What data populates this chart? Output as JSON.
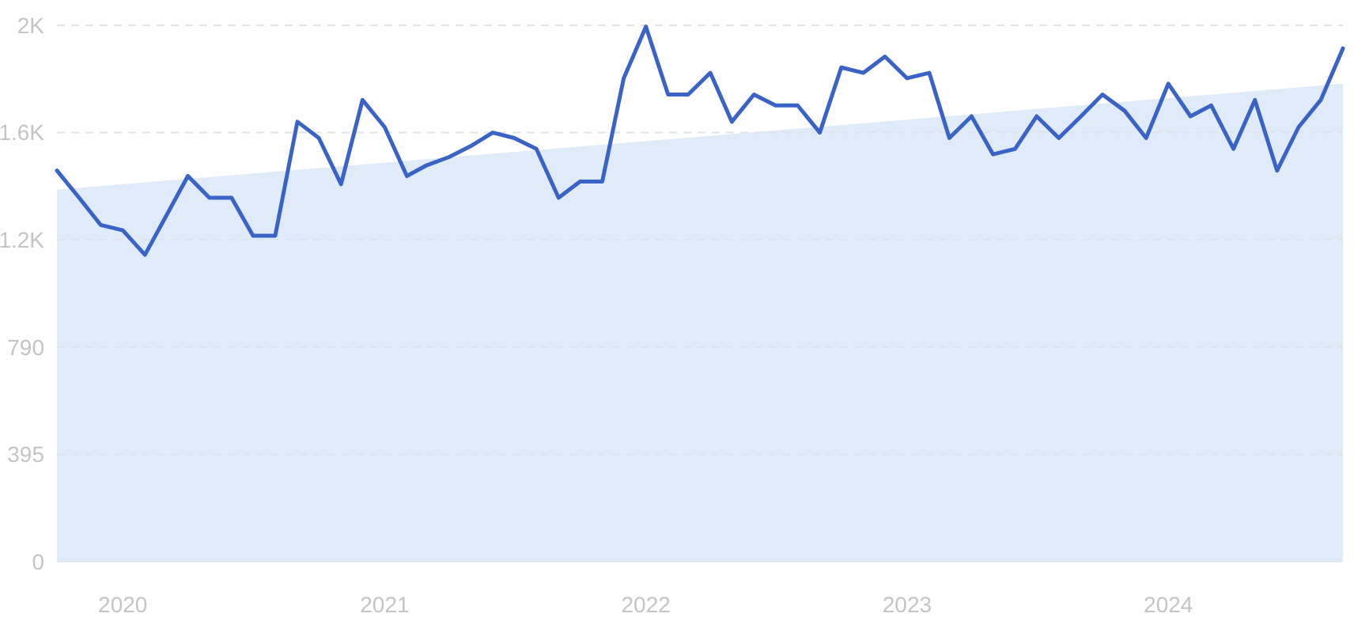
{
  "chart_data": {
    "type": "line",
    "xlim": [
      "2019-10",
      "2024-09"
    ],
    "xticks": [
      "2020",
      "2021",
      "2022",
      "2023",
      "2024"
    ],
    "ylim": [
      0,
      1975
    ],
    "yticks": [
      0,
      395,
      790,
      {
        "value": 1185,
        "label": "1.2K"
      },
      {
        "value": 1580,
        "label": "1.6K"
      },
      {
        "value": 1975,
        "label": "2K"
      }
    ],
    "grid": "y",
    "marker": "none",
    "line_style": "solid",
    "series": [
      {
        "type": "area",
        "color": "#e0ebfa",
        "x": [
          "2019-10",
          "2024-09"
        ],
        "values": [
          1370,
          1760
        ]
      },
      {
        "color": "#3a63c8",
        "x": [
          "2019-10",
          "2019-11",
          "2019-12",
          "2020-01",
          "2020-02",
          "2020-03",
          "2020-04",
          "2020-05",
          "2020-06",
          "2020-07",
          "2020-08",
          "2020-09",
          "2020-10",
          "2020-11",
          "2020-12",
          "2021-01",
          "2021-02",
          "2021-03",
          "2021-04",
          "2021-05",
          "2021-06",
          "2021-07",
          "2021-08",
          "2021-09",
          "2021-10",
          "2021-11",
          "2021-12",
          "2022-01",
          "2022-02",
          "2022-03",
          "2022-04",
          "2022-05",
          "2022-06",
          "2022-07",
          "2022-08",
          "2022-09",
          "2022-10",
          "2022-11",
          "2022-12",
          "2023-01",
          "2023-02",
          "2023-03",
          "2023-04",
          "2023-05",
          "2023-06",
          "2023-07",
          "2023-08",
          "2023-09",
          "2023-10",
          "2023-11",
          "2023-12",
          "2024-01",
          "2024-02",
          "2024-03",
          "2024-04",
          "2024-05",
          "2024-06",
          "2024-07",
          "2024-08",
          "2024-09"
        ],
        "values": [
          1440,
          1340,
          1240,
          1220,
          1130,
          1270,
          1420,
          1340,
          1340,
          1200,
          1200,
          1620,
          1560,
          1390,
          1700,
          1600,
          1420,
          1460,
          1490,
          1530,
          1580,
          1560,
          1520,
          1340,
          1400,
          1400,
          1780,
          1970,
          1720,
          1720,
          1800,
          1620,
          1720,
          1680,
          1680,
          1580,
          1820,
          1800,
          1860,
          1780,
          1800,
          1560,
          1640,
          1500,
          1520,
          1640,
          1560,
          1640,
          1720,
          1660,
          1560,
          1760,
          1640,
          1680,
          1520,
          1700,
          1440,
          1600,
          1700,
          1890
        ]
      }
    ]
  }
}
